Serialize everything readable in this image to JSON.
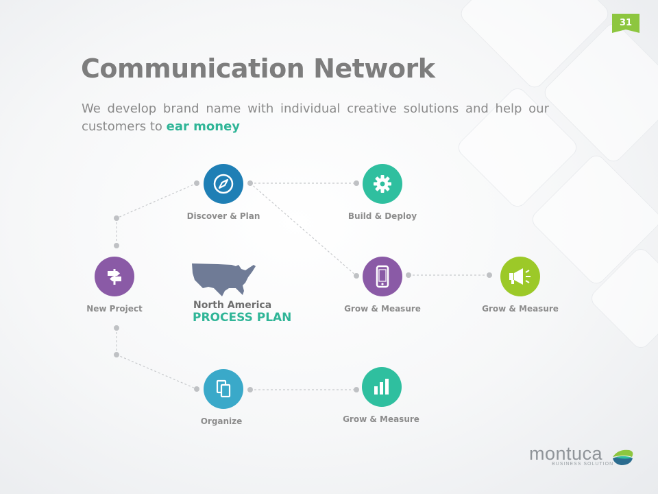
{
  "slide": {
    "page_number": "31",
    "title": "Communication Network",
    "subtitle_text": "We develop brand name with individual creative solutions and help our customers to ",
    "subtitle_highlight": "ear money"
  },
  "nodes": {
    "discover": {
      "label": "Discover & Plan",
      "icon": "compass-icon",
      "color": "#1f7fb5"
    },
    "build": {
      "label": "Build & Deploy",
      "icon": "gear-icon",
      "color": "#2fbf9f"
    },
    "new_project": {
      "label": "New Project",
      "icon": "signpost-icon",
      "color": "#8a5aa6"
    },
    "grow_phone": {
      "label": "Grow & Measure",
      "icon": "smartphone-icon",
      "color": "#8a5aa6"
    },
    "grow_megaphone": {
      "label": "Grow & Measure",
      "icon": "megaphone-icon",
      "color": "#9cc928"
    },
    "organize": {
      "label": "Organize",
      "icon": "copy-icon",
      "color": "#3aa9c9"
    },
    "grow_chart": {
      "label": "Grow & Measure",
      "icon": "bar-chart-icon",
      "color": "#2fbf9f"
    }
  },
  "map": {
    "region": "North America",
    "plan": "PROCESS PLAN",
    "icon": "usa-map-icon",
    "color": "#6f7b96"
  },
  "brand": {
    "name": "montuca",
    "tagline": "BUSINESS SOLUTION",
    "icon": "montuca-logo-icon"
  },
  "colors": {
    "accent_green": "#2fb597",
    "badge_green": "#8dc63f",
    "title_gray": "#7d7d7d"
  }
}
